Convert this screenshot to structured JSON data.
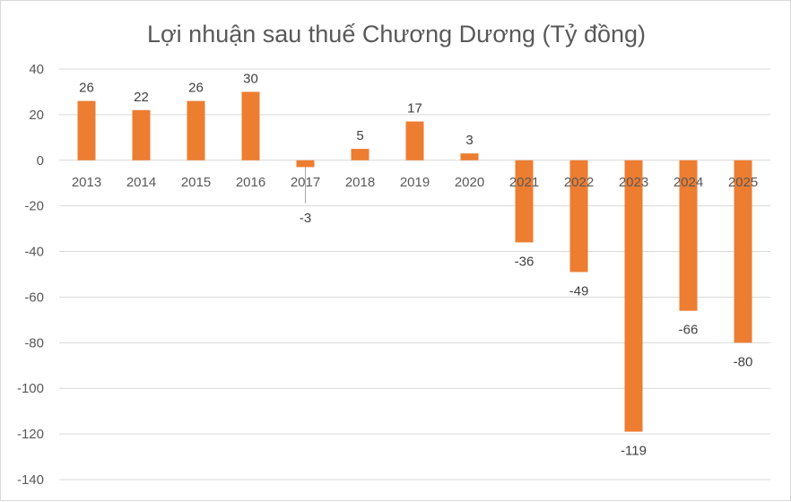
{
  "chart_data": {
    "type": "bar",
    "title": "Lợi nhuận sau thuế Chương Dương (Tỷ đồng)",
    "xlabel": "",
    "ylabel": "",
    "categories": [
      "2013",
      "2014",
      "2015",
      "2016",
      "2017",
      "2018",
      "2019",
      "2020",
      "2021",
      "2022",
      "2023",
      "2024",
      "2025"
    ],
    "values": [
      26,
      22,
      26,
      30,
      -3,
      5,
      17,
      3,
      -36,
      -49,
      -119,
      -66,
      -80
    ],
    "ylim": [
      -140,
      40
    ],
    "yticks": [
      "40",
      "20",
      "0",
      "-20",
      "-40",
      "-60",
      "-80",
      "-100",
      "-120",
      "-140"
    ],
    "grid": true,
    "legend": "none",
    "bar_color": "#ed7d31",
    "data_labels": true
  }
}
